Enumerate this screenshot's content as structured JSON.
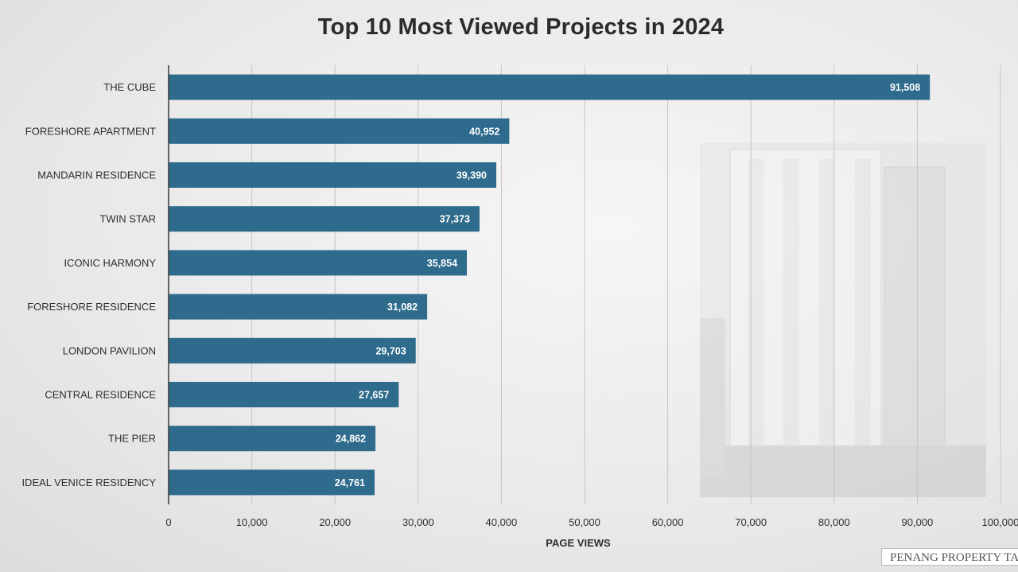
{
  "chart_data": {
    "type": "bar",
    "orientation": "horizontal",
    "title": "Top 10 Most Viewed Projects in 2024",
    "xlabel": "PAGE VIEWS",
    "ylabel": "",
    "xlim": [
      0,
      100000
    ],
    "grid": true,
    "categories": [
      "THE CUBE",
      "FORESHORE APARTMENT",
      "MANDARIN RESIDENCE",
      "TWIN STAR",
      "ICONIC HARMONY",
      "FORESHORE RESIDENCE",
      "LONDON PAVILION",
      "CENTRAL RESIDENCE",
      "THE PIER",
      "IDEAL VENICE RESIDENCY"
    ],
    "values": [
      91508,
      40952,
      39390,
      37373,
      35854,
      31082,
      29703,
      27657,
      24862,
      24761
    ],
    "value_labels": [
      "91,508",
      "40,952",
      "39,390",
      "37,373",
      "35,854",
      "31,082",
      "29,703",
      "27,657",
      "24,862",
      "24,761"
    ],
    "ticks": [
      0,
      10000,
      20000,
      30000,
      40000,
      50000,
      60000,
      70000,
      80000,
      90000,
      100000
    ],
    "tick_labels": [
      "0",
      "10,000",
      "20,000",
      "30,000",
      "40,000",
      "50,000",
      "60,000",
      "70,000",
      "80,000",
      "90,000",
      "100,000"
    ],
    "bar_color": "#2e6b8c",
    "watermark": "PENANG PROPERTY TALK"
  }
}
